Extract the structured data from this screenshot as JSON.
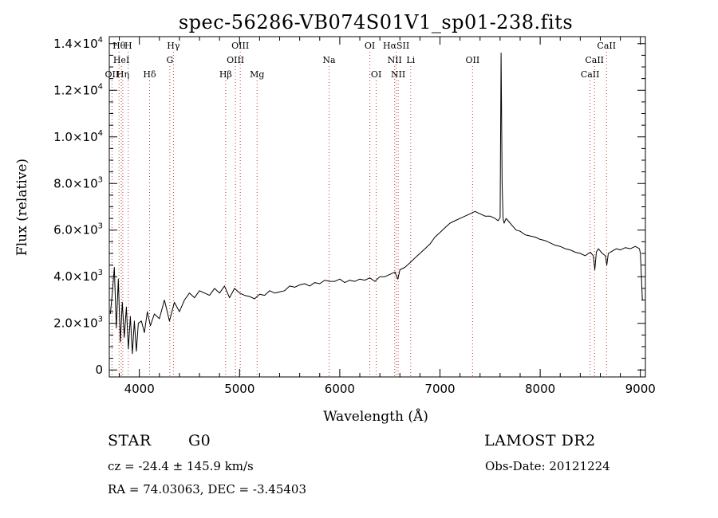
{
  "chart_data": {
    "type": "line",
    "title": "spec-56286-VB074S01V1_sp01-238.fits",
    "xlabel": "Wavelength (Å)",
    "ylabel": "Flux (relative)",
    "xlim": [
      3700,
      9050
    ],
    "ylim": [
      -300,
      14300
    ],
    "x_ticks": [
      {
        "value": 4000,
        "label": "4000"
      },
      {
        "value": 5000,
        "label": "5000"
      },
      {
        "value": 6000,
        "label": "6000"
      },
      {
        "value": 7000,
        "label": "7000"
      },
      {
        "value": 8000,
        "label": "8000"
      },
      {
        "value": 9000,
        "label": "9000"
      }
    ],
    "y_ticks": [
      {
        "value": 0,
        "mant": "0",
        "exp": ""
      },
      {
        "value": 2000,
        "mant": "2.0×10",
        "exp": "3"
      },
      {
        "value": 4000,
        "mant": "4.0×10",
        "exp": "3"
      },
      {
        "value": 6000,
        "mant": "6.0×10",
        "exp": "3"
      },
      {
        "value": 8000,
        "mant": "8.0×10",
        "exp": "3"
      },
      {
        "value": 10000,
        "mant": "1.0×10",
        "exp": "4"
      },
      {
        "value": 12000,
        "mant": "1.2×10",
        "exp": "4"
      },
      {
        "value": 14000,
        "mant": "1.4×10",
        "exp": "4"
      }
    ],
    "lines": [
      {
        "label": "Hθ",
        "wave": 3797,
        "row": 0
      },
      {
        "label": "H",
        "wave": 3889,
        "row": 0
      },
      {
        "label": "Hγ",
        "wave": 4340,
        "row": 0
      },
      {
        "label": "OIII",
        "wave": 5007,
        "row": 0
      },
      {
        "label": "OI",
        "wave": 6300,
        "row": 0
      },
      {
        "label": "HαSII",
        "wave": 6563,
        "row": 0
      },
      {
        "label": "CaII",
        "wave": 8662,
        "row": 0
      },
      {
        "label": "HeI",
        "wave": 3820,
        "row": 1
      },
      {
        "label": "G",
        "wave": 4304,
        "row": 1
      },
      {
        "label": "OIII",
        "wave": 4959,
        "row": 1
      },
      {
        "label": "Na",
        "wave": 5893,
        "row": 1
      },
      {
        "label": "NII",
        "wave": 6548,
        "row": 1
      },
      {
        "label": "Li",
        "wave": 6708,
        "row": 1
      },
      {
        "label": "OII",
        "wave": 7325,
        "row": 1
      },
      {
        "label": "CaII",
        "wave": 8542,
        "row": 1
      },
      {
        "label": "OII",
        "wave": 3727,
        "row": 2
      },
      {
        "label": "Hη",
        "wave": 3835,
        "row": 2
      },
      {
        "label": "Hδ",
        "wave": 4102,
        "row": 2
      },
      {
        "label": "Hβ",
        "wave": 4861,
        "row": 2
      },
      {
        "label": "Mg",
        "wave": 5175,
        "row": 2
      },
      {
        "label": "OI",
        "wave": 6364,
        "row": 2
      },
      {
        "label": "NII",
        "wave": 6583,
        "row": 2
      },
      {
        "label": "CaII",
        "wave": 8498,
        "row": 2
      }
    ],
    "series": [
      {
        "x": [
          3710,
          3730,
          3750,
          3770,
          3790,
          3810,
          3830,
          3850,
          3870,
          3890,
          3910,
          3930,
          3950,
          3970,
          3990,
          4020,
          4050,
          4080,
          4110,
          4150,
          4200,
          4250,
          4300,
          4350,
          4400,
          4450,
          4500,
          4550,
          4600,
          4650,
          4700,
          4750,
          4800,
          4850,
          4900,
          4950,
          5000,
          5050,
          5100,
          5150,
          5200,
          5250,
          5300,
          5350,
          5400,
          5450,
          5500,
          5550,
          5600,
          5650,
          5700,
          5750,
          5800,
          5850,
          5900,
          5950,
          6000,
          6050,
          6100,
          6150,
          6200,
          6250,
          6300,
          6350,
          6400,
          6450,
          6500,
          6550,
          6580,
          6600,
          6650,
          6700,
          6750,
          6800,
          6850,
          6900,
          6950,
          7000,
          7050,
          7100,
          7150,
          7200,
          7250,
          7300,
          7350,
          7400,
          7450,
          7500,
          7550,
          7580,
          7600,
          7610,
          7620,
          7630,
          7640,
          7660,
          7680,
          7720,
          7760,
          7800,
          7850,
          7900,
          7950,
          8000,
          8050,
          8100,
          8150,
          8200,
          8250,
          8300,
          8350,
          8400,
          8450,
          8500,
          8530,
          8545,
          8560,
          8580,
          8620,
          8650,
          8665,
          8680,
          8720,
          8760,
          8800,
          8850,
          8900,
          8950,
          8990,
          9000,
          9010,
          9020
        ],
        "values": [
          2400,
          3300,
          4400,
          1800,
          3900,
          1200,
          2900,
          1400,
          2700,
          900,
          2300,
          700,
          2100,
          800,
          2000,
          2100,
          1600,
          2500,
          1900,
          2400,
          2200,
          3000,
          2100,
          2900,
          2500,
          3000,
          3300,
          3100,
          3400,
          3300,
          3200,
          3500,
          3300,
          3600,
          3100,
          3500,
          3300,
          3200,
          3150,
          3050,
          3250,
          3200,
          3400,
          3300,
          3350,
          3400,
          3600,
          3550,
          3650,
          3700,
          3600,
          3750,
          3700,
          3850,
          3800,
          3800,
          3900,
          3750,
          3850,
          3800,
          3900,
          3850,
          3950,
          3800,
          4000,
          4000,
          4100,
          4200,
          3900,
          4300,
          4400,
          4600,
          4800,
          5000,
          5200,
          5400,
          5700,
          5900,
          6100,
          6300,
          6400,
          6500,
          6600,
          6700,
          6800,
          6700,
          6600,
          6600,
          6500,
          6400,
          6550,
          13600,
          8000,
          6500,
          6300,
          6500,
          6400,
          6200,
          6000,
          5950,
          5800,
          5750,
          5700,
          5600,
          5550,
          5450,
          5350,
          5300,
          5200,
          5150,
          5050,
          5000,
          4900,
          5050,
          4900,
          4300,
          5050,
          5200,
          5000,
          4900,
          4500,
          5000,
          5100,
          5200,
          5150,
          5250,
          5200,
          5300,
          5200,
          5000,
          4000,
          3000
        ]
      }
    ],
    "grid": false,
    "legend": "none"
  },
  "info": {
    "object_class": "STAR",
    "subclass": "G0",
    "survey": "LAMOST DR2",
    "obs_date": "Obs-Date: 20121224",
    "cz": "cz = -24.4 ± 145.9 km/s",
    "coords": "RA =  74.03063, DEC =  -3.45403"
  }
}
